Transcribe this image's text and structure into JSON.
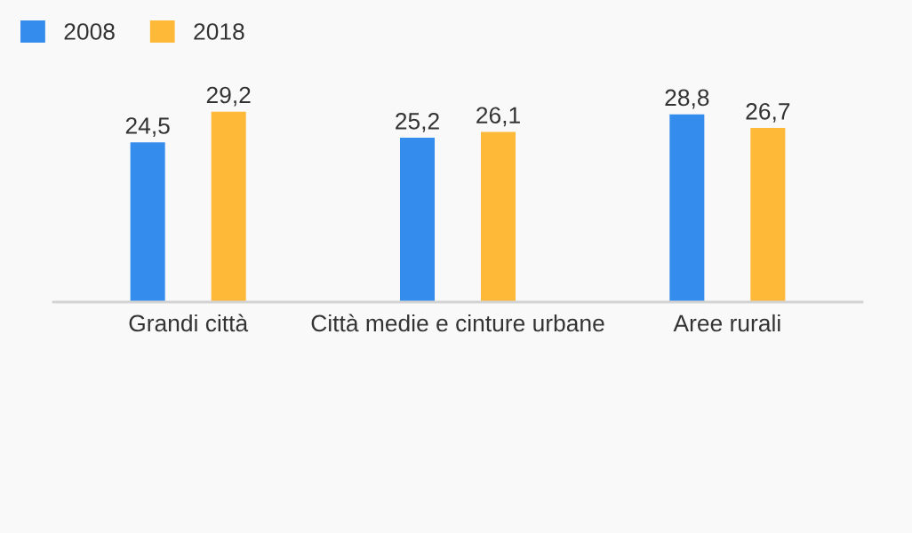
{
  "chart_data": {
    "type": "bar",
    "categories": [
      "Grandi città",
      "Città medie e cinture urbane",
      "Aree rurali"
    ],
    "series": [
      {
        "name": "2008",
        "color": "#348ced",
        "values": [
          24.5,
          25.2,
          28.8
        ],
        "value_labels": [
          "24,5",
          "25,2",
          "28,8"
        ]
      },
      {
        "name": "2018",
        "color": "#ffb938",
        "values": [
          29.2,
          26.1,
          26.7
        ],
        "value_labels": [
          "29,2",
          "26,1",
          "26,7"
        ]
      }
    ],
    "tick_labels": "x",
    "legend": "top left",
    "grid": false
  }
}
